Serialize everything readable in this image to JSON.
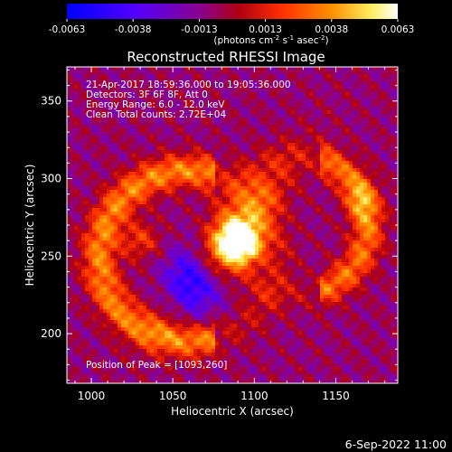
{
  "chart_data": {
    "type": "heatmap",
    "title": "Reconstructed RHESSI Image",
    "xlabel": "Heliocentric X (arcsec)",
    "ylabel": "Heliocentric Y (arcsec)",
    "xlim": [
      985,
      1188
    ],
    "ylim": [
      168,
      372
    ],
    "x_ticks": [
      1000,
      1050,
      1100,
      1150
    ],
    "y_ticks": [
      200,
      250,
      300,
      350
    ],
    "colorbar": {
      "ticks": [
        "-0.0063",
        "-0.0038",
        "-0.0013",
        "0.0013",
        "0.0038",
        "0.0063"
      ],
      "unit_label": "(photons cm",
      "unit_exp1": "-2",
      "unit_mid": " s",
      "unit_exp2": "-1",
      "unit_mid2": " asec",
      "unit_exp3": "-2",
      "unit_end": ")",
      "range": [
        -0.0063,
        0.0063
      ],
      "colors": [
        "#0000ff",
        "#4b00ff",
        "#8000a0",
        "#a00000",
        "#ff4000",
        "#ff9000",
        "#ffff80",
        "#ffffff"
      ]
    },
    "annotations": {
      "time_range": "21-Apr-2017 18:59:36.000 to 19:05:36.000",
      "detectors": "Detectors: 3F 6F 8F, Att 0",
      "energy_range": "Energy Range: 6.0 - 12.0 keV",
      "clean": "Clean    Total counts: 2.72E+04",
      "peak": "Position of Peak = [1093,260]"
    },
    "sources": [
      {
        "x": 1093,
        "y": 260,
        "peak": 0.0063
      },
      {
        "x": 1030,
        "y": 258,
        "peak": 0.0046
      },
      {
        "x": 1165,
        "y": 285,
        "peak": 0.0043
      }
    ]
  },
  "footer": {
    "date": "6-Sep-2022 11:00"
  }
}
